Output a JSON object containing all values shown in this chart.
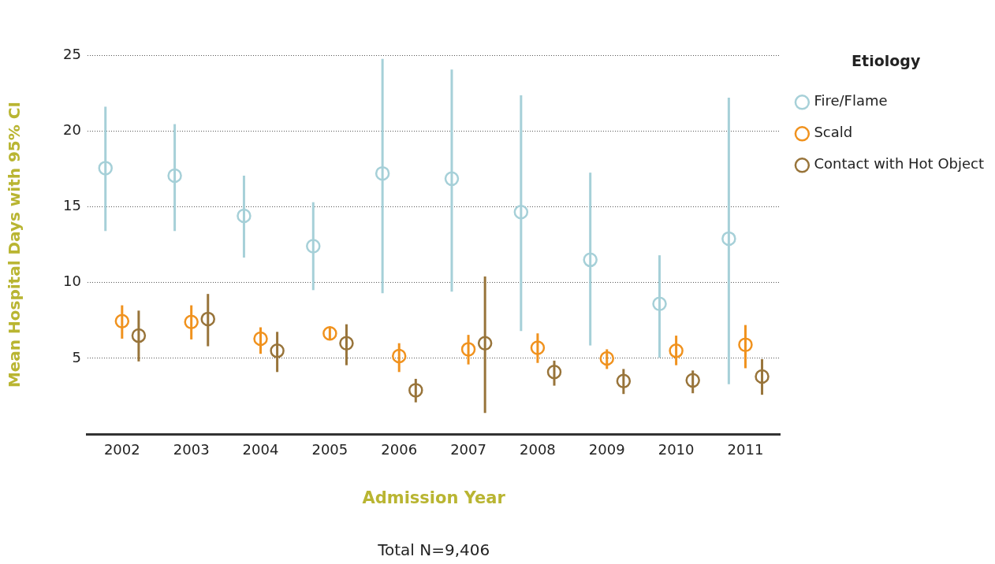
{
  "chart_data": {
    "type": "scatter",
    "xlabel": "Admission Year",
    "ylabel": "Mean Hospital Days with 95% CI",
    "legend_title": "Etiology",
    "annotations": [
      "Total N=9,406"
    ],
    "categories": [
      "2002",
      "2003",
      "2004",
      "2005",
      "2006",
      "2007",
      "2008",
      "2009",
      "2010",
      "2011"
    ],
    "ylim": [
      0,
      25
    ],
    "yticks": [
      5,
      10,
      15,
      20,
      25
    ],
    "grid": "y",
    "legend": "top right",
    "marker": "circle",
    "series": [
      {
        "name": "Fire/Flame",
        "color": "#a6d0d8",
        "values": [
          17.55,
          17.05,
          14.4,
          12.4,
          17.2,
          16.85,
          14.65,
          11.5,
          8.6,
          12.9
        ],
        "errors": [
          [
            13.4,
            21.6
          ],
          [
            13.4,
            20.45
          ],
          [
            11.65,
            17.05
          ],
          [
            9.5,
            15.3
          ],
          [
            9.3,
            24.75
          ],
          [
            9.4,
            24.05
          ],
          [
            6.8,
            22.35
          ],
          [
            5.85,
            17.25
          ],
          [
            5.05,
            11.8
          ],
          [
            3.3,
            22.2
          ]
        ]
      },
      {
        "name": "Scald",
        "color": "#f0921e",
        "values": [
          7.45,
          7.4,
          6.3,
          6.65,
          5.15,
          5.6,
          5.7,
          5.0,
          5.5,
          5.9
        ],
        "errors": [
          [
            6.3,
            8.5
          ],
          [
            6.25,
            8.5
          ],
          [
            5.3,
            7.05
          ],
          [
            6.2,
            7.1
          ],
          [
            4.1,
            6.0
          ],
          [
            4.6,
            6.55
          ],
          [
            4.7,
            6.65
          ],
          [
            4.3,
            5.6
          ],
          [
            4.55,
            6.5
          ],
          [
            4.35,
            7.2
          ]
        ]
      },
      {
        "name": "Contact with Hot Object",
        "color": "#98743a",
        "values": [
          6.5,
          7.6,
          5.5,
          6.0,
          2.9,
          6.0,
          4.1,
          3.5,
          3.55,
          3.8
        ],
        "errors": [
          [
            4.8,
            8.15
          ],
          [
            5.8,
            9.25
          ],
          [
            4.1,
            6.75
          ],
          [
            4.55,
            7.25
          ],
          [
            2.1,
            3.65
          ],
          [
            1.4,
            10.4
          ],
          [
            3.2,
            4.85
          ],
          [
            2.65,
            4.3
          ],
          [
            2.7,
            4.2
          ],
          [
            2.6,
            4.95
          ]
        ]
      }
    ]
  }
}
